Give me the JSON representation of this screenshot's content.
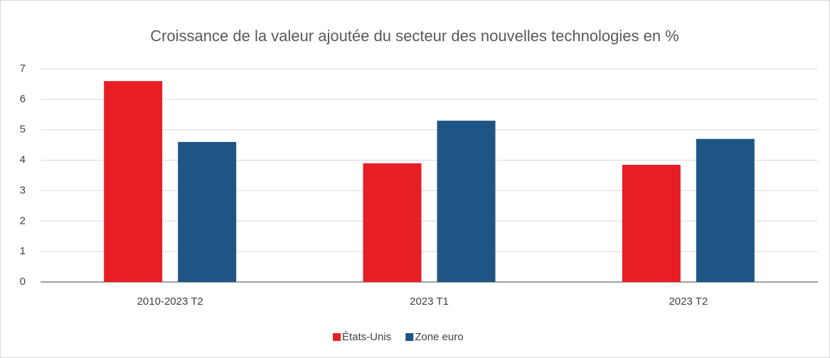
{
  "chart_data": {
    "type": "bar",
    "title": "Croissance de la valeur ajoutée du secteur des nouvelles technologies en %",
    "categories": [
      "2010-2023 T2",
      "2023 T1",
      "2023 T2"
    ],
    "series": [
      {
        "name": "États-Unis",
        "color": "#e81e25",
        "values": [
          6.6,
          3.9,
          3.85
        ]
      },
      {
        "name": "Zone euro",
        "color": "#1f5585",
        "values": [
          4.6,
          5.3,
          4.7
        ]
      }
    ],
    "ylim": [
      0,
      7
    ],
    "yticks": [
      0,
      1,
      2,
      3,
      4,
      5,
      6,
      7
    ],
    "grid": true,
    "legend": "bottom"
  }
}
